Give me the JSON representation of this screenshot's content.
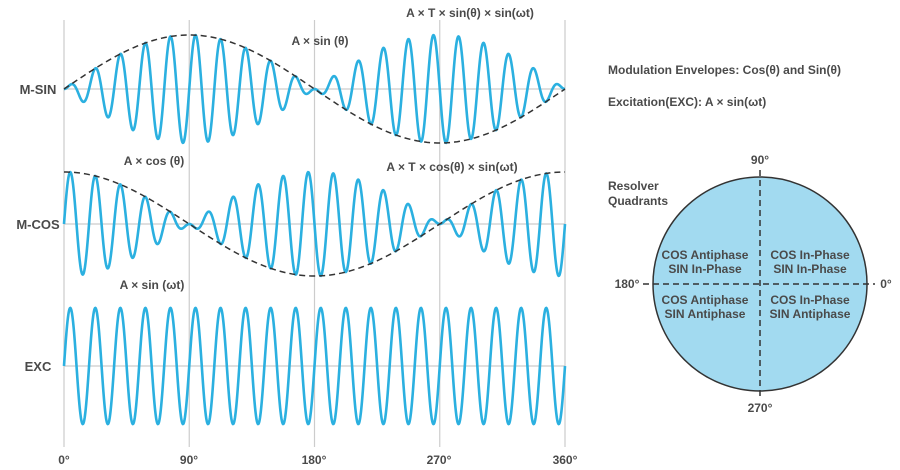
{
  "chart_data": {
    "type": "line",
    "x_ticks": [
      "0°",
      "90°",
      "180°",
      "270°",
      "360°"
    ],
    "xlim": [
      0,
      360
    ],
    "carrier_cycles": 20,
    "series": [
      {
        "name": "M-SIN",
        "envelope": "sin",
        "label_envelope": "A × sin (θ)",
        "label_signal": "A × T × sin(θ) × sin(ωt)"
      },
      {
        "name": "M-COS",
        "envelope": "cos",
        "label_envelope": "A × cos (θ)",
        "label_signal": "A × T × cos(θ) × sin(ωt)"
      },
      {
        "name": "EXC",
        "envelope": "none",
        "label_signal": "A × sin (ωt)"
      }
    ],
    "grid": true,
    "colors": {
      "signal": "#2bb0e0",
      "envelope": "#333333",
      "grid": "#cccccc"
    }
  },
  "legend": {
    "line1": "Modulation Envelopes: Cos(θ) and Sin(θ)",
    "line2": "Excitation(EXC): A × sin(ωt)"
  },
  "quadrants": {
    "title_line1": "Resolver",
    "title_line2": "Quadrants",
    "angle_90": "90°",
    "angle_180": "180°",
    "angle_0": "0°",
    "angle_270": "270°",
    "q2": [
      "COS Antiphase",
      "SIN In-Phase"
    ],
    "q1": [
      "COS In-Phase",
      "SIN In-Phase"
    ],
    "q3": [
      "COS Antiphase",
      "SIN Antiphase"
    ],
    "q4": [
      "COS In-Phase",
      "SIN Antiphase"
    ],
    "fill": "#a2daf0"
  }
}
